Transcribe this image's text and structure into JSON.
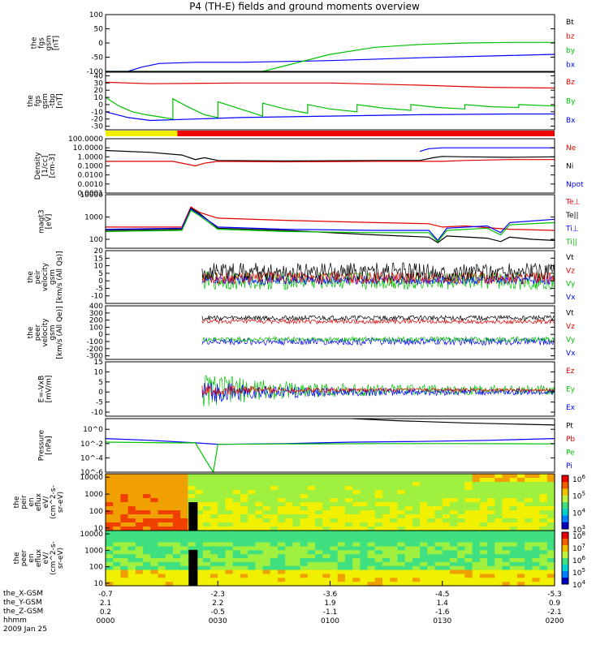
{
  "chart_data": {
    "type": "line",
    "title": "P4 (TH-E) fields and ground moments overview",
    "panels": [
      {
        "id": "fgs",
        "ylabel": [
          "the",
          "fgs",
          "gsm",
          "[nT]"
        ],
        "ylim": [
          -100,
          100
        ],
        "ticks": [
          "100",
          "50",
          "0",
          "-50",
          "-100"
        ],
        "tickvals": [
          100,
          50,
          0,
          -50,
          -100
        ],
        "legend": [
          {
            "t": "Bt",
            "c": "#000000"
          },
          {
            "t": "bz",
            "c": "#e00000"
          },
          {
            "t": "by",
            "c": "#00c000"
          },
          {
            "t": "bx",
            "c": "#0000ff"
          }
        ],
        "series": [
          {
            "color": "#0000ff",
            "x": [
              0.0,
              0.05,
              0.08,
              0.12,
              0.2,
              0.3,
              0.5,
              0.7,
              0.9,
              1.0
            ],
            "y": [
              -100,
              -100,
              -85,
              -72,
              -68,
              -68,
              -62,
              -52,
              -44,
              -40
            ]
          },
          {
            "color": "#00c000",
            "x": [
              0.0,
              0.35,
              0.4,
              0.5,
              0.6,
              0.7,
              0.8,
              0.9,
              1.0
            ],
            "y": [
              -110,
              -110,
              -80,
              -40,
              -15,
              -5,
              0,
              2,
              2
            ]
          }
        ]
      },
      {
        "id": "fgl",
        "ylabel": [
          "the",
          "fgs",
          "gsm",
          "-tbp",
          "[nT]"
        ],
        "ylim": [
          -35,
          45
        ],
        "ticks": [
          "40",
          "30",
          "20",
          "10",
          "0",
          "-10",
          "-20",
          "-30"
        ],
        "tickvals": [
          40,
          30,
          20,
          10,
          0,
          -10,
          -20,
          -30
        ],
        "legend": [
          {
            "t": "Bz",
            "c": "#e00000"
          },
          {
            "t": "By",
            "c": "#00c000"
          },
          {
            "t": "Bx",
            "c": "#0000ff"
          }
        ],
        "series": [
          {
            "color": "#e00000",
            "x": [
              0.0,
              0.1,
              0.3,
              0.5,
              0.7,
              0.85,
              1.0
            ],
            "y": [
              31,
              29,
              30,
              30,
              27,
              24,
              23
            ]
          },
          {
            "color": "#00c000",
            "x": [
              0.0,
              0.03,
              0.06,
              0.09,
              0.12,
              0.15,
              0.15,
              0.18,
              0.22,
              0.25,
              0.25,
              0.3,
              0.35,
              0.35,
              0.4,
              0.45,
              0.45,
              0.5,
              0.56,
              0.56,
              0.62,
              0.68,
              0.68,
              0.74,
              0.8,
              0.8,
              0.86,
              0.92,
              0.92,
              1.0
            ],
            "y": [
              10,
              -2,
              -10,
              -14,
              -17,
              -20,
              8,
              -2,
              -14,
              -18,
              4,
              -6,
              -16,
              2,
              -6,
              -12,
              0,
              -6,
              -10,
              0,
              -5,
              -8,
              0,
              -4,
              -6,
              0,
              -3,
              -4,
              0,
              -2
            ]
          },
          {
            "color": "#0000ff",
            "x": [
              0.0,
              0.05,
              0.1,
              0.2,
              0.3,
              0.5,
              0.7,
              0.9,
              1.0
            ],
            "y": [
              -10,
              -18,
              -22,
              -20,
              -18,
              -16,
              -14,
              -13,
              -13
            ]
          }
        ]
      },
      {
        "id": "dens",
        "ylabel": [
          "Density",
          "[1/cc]",
          "[cm-3]"
        ],
        "ylim": [
          -4,
          2
        ],
        "log": true,
        "ticks": [
          "100.0000",
          "10.0000",
          "1.0000",
          "0.1000",
          "0.0100",
          "0.0010",
          "0.0001"
        ],
        "tickvals": [
          2,
          1,
          0,
          -1,
          -2,
          -3,
          -4
        ],
        "legend": [
          {
            "t": "Ne",
            "c": "#e00000"
          },
          {
            "t": "Ni",
            "c": "#000000"
          },
          {
            "t": "Npot",
            "c": "#0000ff"
          }
        ],
        "series": [
          {
            "color": "#000000",
            "x": [
              0.0,
              0.1,
              0.17,
              0.2,
              0.22,
              0.25,
              0.4,
              0.6,
              0.7,
              0.73,
              0.75,
              0.8,
              0.9,
              1.0
            ],
            "y": [
              0.7,
              0.5,
              0.2,
              -0.3,
              -0.1,
              -0.4,
              -0.45,
              -0.4,
              -0.4,
              -0.1,
              0.05,
              0.0,
              -0.05,
              0.0
            ]
          },
          {
            "color": "#e00000",
            "x": [
              0.0,
              0.15,
              0.2,
              0.22,
              0.25,
              0.4,
              0.6,
              0.75,
              0.8,
              0.9,
              1.0
            ],
            "y": [
              -0.5,
              -0.5,
              -1.0,
              -0.7,
              -0.5,
              -0.55,
              -0.5,
              -0.5,
              -0.4,
              -0.3,
              -0.3
            ]
          },
          {
            "color": "#0000ff",
            "x": [
              0.7,
              0.72,
              0.75,
              0.85,
              1.0
            ],
            "y": [
              0.6,
              0.9,
              1.0,
              1.0,
              1.0
            ]
          }
        ]
      },
      {
        "id": "temp",
        "ylabel": [
          "magt3",
          "[eV]"
        ],
        "ylim": [
          1.6,
          4.0
        ],
        "log": true,
        "ticks": [
          "10000",
          "1000",
          "100"
        ],
        "tickvals": [
          4,
          3,
          2
        ],
        "legend": [
          {
            "t": "Te⊥",
            "c": "#e00000"
          },
          {
            "t": "Te||",
            "c": "#000000"
          },
          {
            "t": "Ti⊥",
            "c": "#0000ff"
          },
          {
            "t": "Ti||",
            "c": "#00c000"
          }
        ],
        "series": [
          {
            "color": "#e00000",
            "x": [
              0.0,
              0.17,
              0.19,
              0.21,
              0.25,
              0.4,
              0.6,
              0.72,
              0.75,
              0.8,
              0.9,
              1.0
            ],
            "y": [
              2.55,
              2.55,
              3.45,
              3.2,
              2.95,
              2.85,
              2.75,
              2.7,
              2.55,
              2.6,
              2.45,
              2.4
            ]
          },
          {
            "color": "#000000",
            "x": [
              0.0,
              0.17,
              0.19,
              0.21,
              0.25,
              0.4,
              0.6,
              0.72,
              0.74,
              0.76,
              0.85,
              0.88,
              0.9,
              0.95,
              1.0
            ],
            "y": [
              2.4,
              2.45,
              3.4,
              3.15,
              2.5,
              2.4,
              2.2,
              2.1,
              1.85,
              2.15,
              2.05,
              1.9,
              2.1,
              2.0,
              1.95
            ]
          },
          {
            "color": "#0000ff",
            "x": [
              0.0,
              0.17,
              0.19,
              0.21,
              0.25,
              0.4,
              0.6,
              0.72,
              0.74,
              0.76,
              0.85,
              0.88,
              0.9,
              1.0
            ],
            "y": [
              2.45,
              2.5,
              3.35,
              3.1,
              2.55,
              2.45,
              2.4,
              2.4,
              1.95,
              2.5,
              2.6,
              2.3,
              2.75,
              2.9
            ]
          },
          {
            "color": "#00c000",
            "x": [
              0.0,
              0.17,
              0.19,
              0.21,
              0.25,
              0.4,
              0.6,
              0.72,
              0.74,
              0.76,
              0.85,
              0.88,
              0.9,
              1.0
            ],
            "y": [
              2.35,
              2.4,
              3.3,
              3.05,
              2.45,
              2.35,
              2.3,
              2.3,
              1.9,
              2.4,
              2.5,
              2.2,
              2.65,
              2.75
            ]
          }
        ]
      },
      {
        "id": "vpeir",
        "ylabel": [
          "the",
          "peir",
          "velocity",
          "gsm",
          "[km/s (All Qs)]"
        ],
        "ylim": [
          -15,
          20
        ],
        "ticks": [
          "20",
          "15",
          "10",
          "5",
          "0",
          "-5",
          "-10"
        ],
        "tickvals": [
          20,
          15,
          10,
          5,
          0,
          -5,
          -10
        ],
        "legend": [
          {
            "t": "Vt",
            "c": "#000000"
          },
          {
            "t": "Vz",
            "c": "#e00000"
          },
          {
            "t": "Vy",
            "c": "#00c000"
          },
          {
            "t": "Vx",
            "c": "#0000ff"
          }
        ],
        "noise": [
          {
            "color": "#00c000",
            "x0": 0.215,
            "mean": 0,
            "amp": 6
          },
          {
            "color": "#0000ff",
            "x0": 0.215,
            "mean": 0.5,
            "amp": 3
          },
          {
            "color": "#e00000",
            "x0": 0.215,
            "mean": 2,
            "amp": 4
          },
          {
            "color": "#000000",
            "x0": 0.215,
            "mean": 6,
            "amp": 6
          }
        ]
      },
      {
        "id": "vpeer",
        "ylabel": [
          "the",
          "peer",
          "velocity",
          "gsm",
          "[km/s (All Qe)]"
        ],
        "ylim": [
          -350,
          400
        ],
        "ticks": [
          "400",
          "300",
          "200",
          "100",
          "0",
          "-100",
          "-200",
          "-300"
        ],
        "tickvals": [
          400,
          300,
          200,
          100,
          0,
          -100,
          -200,
          -300
        ],
        "legend": [
          {
            "t": "Vt",
            "c": "#000000"
          },
          {
            "t": "Vz",
            "c": "#e00000"
          },
          {
            "t": "Vy",
            "c": "#00c000"
          },
          {
            "t": "Vx",
            "c": "#0000ff"
          }
        ],
        "noise": [
          {
            "color": "#0000ff",
            "x0": 0.215,
            "mean": -100,
            "amp": 50
          },
          {
            "color": "#00c000",
            "x0": 0.215,
            "mean": -70,
            "amp": 35
          },
          {
            "color": "#e00000",
            "x0": 0.215,
            "mean": 180,
            "amp": 30
          },
          {
            "color": "#000000",
            "x0": 0.215,
            "mean": 230,
            "amp": 35
          }
        ]
      },
      {
        "id": "efield",
        "ylabel": [
          "E=-VxB",
          "[mV/m]"
        ],
        "ylim": [
          -12,
          15
        ],
        "ticks": [
          "15",
          "10",
          "5",
          "0",
          "-5",
          "-10"
        ],
        "tickvals": [
          15,
          10,
          5,
          0,
          -5,
          -10
        ],
        "legend": [
          {
            "t": "Ez",
            "c": "#e00000"
          },
          {
            "t": "Ey",
            "c": "#00c000"
          },
          {
            "t": "Ex",
            "c": "#0000ff"
          }
        ],
        "noise": [
          {
            "color": "#00c000",
            "x0": 0.215,
            "mean": 1,
            "amp": 9,
            "decay": true
          },
          {
            "color": "#0000ff",
            "x0": 0.215,
            "mean": 0,
            "amp": 6,
            "decay": true
          },
          {
            "color": "#e00000",
            "x0": 0.215,
            "mean": 1,
            "amp": 3,
            "decay": true
          }
        ]
      },
      {
        "id": "press",
        "ylabel": [
          "Pressure",
          "[nPa]"
        ],
        "ylim": [
          -6,
          1.5
        ],
        "log": true,
        "ticks": [
          "10^0",
          "10^-2",
          "10^-4",
          "10^-6"
        ],
        "tickvals": [
          0,
          -2,
          -4,
          -6
        ],
        "legend": [
          {
            "t": "Pt",
            "c": "#000000"
          },
          {
            "t": "Pb",
            "c": "#e00000"
          },
          {
            "t": "Pe",
            "c": "#00c000"
          },
          {
            "t": "Pi",
            "c": "#0000ff"
          }
        ],
        "series": [
          {
            "color": "#0000ff",
            "x": [
              0.0,
              0.1,
              0.2,
              0.25,
              0.4,
              0.55,
              0.7,
              0.85,
              1.0
            ],
            "y": [
              -1.3,
              -1.55,
              -1.9,
              -2.1,
              -2.0,
              -1.8,
              -1.7,
              -1.55,
              -1.3
            ]
          },
          {
            "color": "#00c000",
            "x": [
              0.0,
              0.15,
              0.2,
              0.22,
              0.24,
              0.25,
              0.4,
              0.6,
              0.8,
              1.0
            ],
            "y": [
              -1.8,
              -1.9,
              -1.9,
              -4.0,
              -6.0,
              -2.1,
              -2.05,
              -2.0,
              -2.0,
              -2.05
            ]
          },
          {
            "color": "#000000",
            "x": [
              0.55,
              0.65,
              0.8,
              1.0
            ],
            "y": [
              1.5,
              1.2,
              0.9,
              0.6
            ]
          }
        ]
      }
    ],
    "spectrograms": [
      {
        "id": "peir_en",
        "ylabel": [
          "the",
          "peir",
          "en",
          "eflux",
          "eV/",
          "(cm^2-s-",
          "sr-eV)"
        ],
        "ticks": [
          "10000",
          "1000",
          "100",
          "10"
        ],
        "tickvals": [
          4,
          3,
          2,
          1
        ],
        "cbar": [
          "10^6",
          "10^5",
          "10^4",
          "10^3"
        ]
      },
      {
        "id": "peer_en",
        "ylabel": [
          "the",
          "peer",
          "en",
          "eflux",
          "eV/",
          "(cm^2-s-",
          "sr-eV)"
        ],
        "ticks": [
          "10000",
          "1000",
          "100",
          "10"
        ],
        "tickvals": [
          4,
          3,
          2,
          1
        ],
        "cbar": [
          "10^8",
          "10^7",
          "10^6",
          "10^5",
          "10^4"
        ]
      }
    ],
    "xaxis": {
      "rows": [
        {
          "label": "the_X-GSM",
          "vals": [
            "-0.7",
            "-2.3",
            "-3.6",
            "-4.5",
            "-5.3"
          ]
        },
        {
          "label": "the_Y-GSM",
          "vals": [
            "2.1",
            "2.2",
            "1.9",
            "1.4",
            "0.9"
          ]
        },
        {
          "label": "the_Z-GSM",
          "vals": [
            "0.2",
            "-0.5",
            "-1.1",
            "-1.6",
            "-2.1"
          ]
        },
        {
          "label": "hhmm",
          "vals": [
            "0000",
            "0030",
            "0100",
            "0130",
            "0200"
          ]
        }
      ],
      "date": "2009 Jan 25"
    }
  }
}
